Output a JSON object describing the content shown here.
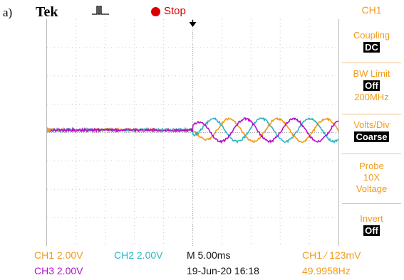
{
  "figure_label": "a)",
  "header": {
    "brand": "Tek",
    "trigger_icon": "pulse-trigger-icon",
    "status": "Stop",
    "status_color": "#d80000"
  },
  "side_menu": {
    "title": "CH1",
    "coupling_label": "Coupling",
    "coupling_value": "DC",
    "bw_label": "BW Limit",
    "bw_value": "Off",
    "bw_sub": "200MHz",
    "voltsdiv_label": "Volts/Div",
    "voltsdiv_value": "Coarse",
    "probe_label": "Probe",
    "probe_value": "10X",
    "probe_sub": "Voltage",
    "invert_label": "Invert",
    "invert_value": "Off"
  },
  "status_bar": {
    "ch1_scale": "CH1  2.00V",
    "ch2_scale": "CH2  2.00V",
    "ch3_scale": "CH3  2.00V",
    "timebase": "M 5.00ms",
    "date": "19-Jun-20 16:18",
    "trigger": "CH1 ∕ 123mV",
    "frequency": "49.9958Hz"
  },
  "colors": {
    "ch1": "#f29a1a",
    "ch2": "#2bb4c4",
    "ch3": "#b40fc8"
  }
}
